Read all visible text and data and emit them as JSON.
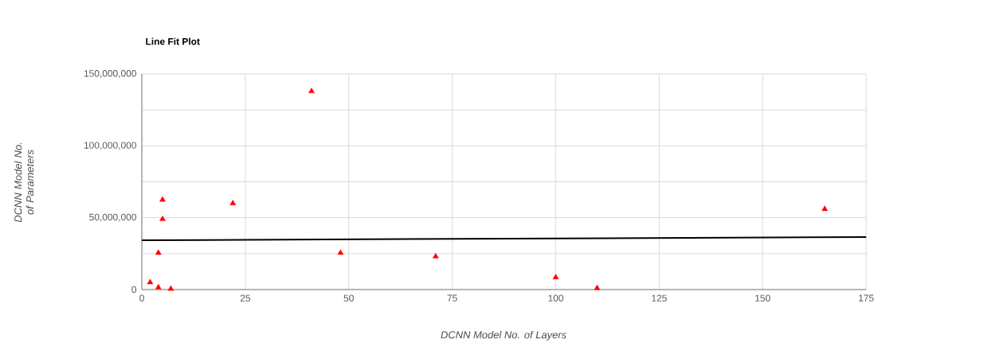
{
  "chart_data": {
    "type": "scatter",
    "title": "Line Fit Plot",
    "xlabel": "DCNN Model No. of Layers",
    "ylabel": "DCNN Model No. of Parameters",
    "series": [
      {
        "type": "scatter",
        "color": "#ff0000",
        "marker": "triangle",
        "x": [
          2,
          4,
          4,
          5,
          5,
          7,
          22,
          41,
          48,
          71,
          100,
          110,
          165
        ],
        "values": [
          5000000,
          1500000,
          25500000,
          49000000,
          62500000,
          500000,
          60000000,
          138000000,
          25500000,
          23000000,
          8500000,
          1000000,
          56000000
        ]
      },
      {
        "type": "line",
        "color": "#000000",
        "marker": "none",
        "line_style": "solid",
        "x": [
          0,
          175
        ],
        "values": [
          34300000,
          36500000
        ]
      }
    ],
    "xlim": [
      0,
      175
    ],
    "xticks": [
      0,
      25,
      50,
      75,
      100,
      125,
      150,
      175
    ],
    "ylim": [
      0,
      150000000
    ],
    "yticks": [
      {
        "value": 0,
        "label": "0"
      },
      {
        "value": 25000000,
        "label": null
      },
      {
        "value": 50000000,
        "label": "50,000,000"
      },
      {
        "value": 75000000,
        "label": null
      },
      {
        "value": 100000000,
        "label": "100,000,000"
      },
      {
        "value": 125000000,
        "label": null
      },
      {
        "value": 150000000,
        "label": "150,000,000"
      }
    ],
    "grid": true,
    "legend": false
  }
}
